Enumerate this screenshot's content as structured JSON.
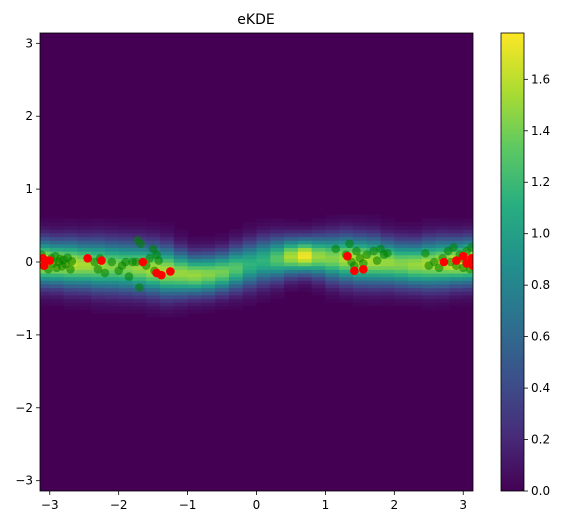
{
  "chart_data": {
    "type": "heatmap",
    "title": "eKDE",
    "xlabel": "",
    "ylabel": "",
    "xlim": [
      -3.14159,
      3.14159
    ],
    "ylim": [
      -3.14159,
      3.14159
    ],
    "x_ticks": [
      -3,
      -2,
      -1,
      0,
      1,
      2,
      3
    ],
    "x_tick_labels": [
      "−3",
      "−2",
      "−1",
      "0",
      "1",
      "2",
      "3"
    ],
    "y_ticks": [
      -3,
      -2,
      -1,
      0,
      1,
      2,
      3
    ],
    "y_tick_labels": [
      "−3",
      "−2",
      "−1",
      "0",
      "1",
      "2",
      "3"
    ],
    "grid": false,
    "colormap": "viridis",
    "colorbar": {
      "range": [
        0,
        1.78
      ],
      "ticks": [
        0.0,
        0.2,
        0.4,
        0.6,
        0.8,
        1.0,
        1.2,
        1.4,
        1.6
      ],
      "tick_labels": [
        "0.0",
        "0.2",
        "0.4",
        "0.6",
        "0.8",
        "1.0",
        "1.2",
        "1.4",
        "1.6"
      ]
    },
    "density_band": {
      "columns_x": [
        -3.1,
        -2.9,
        -2.7,
        -2.5,
        -2.3,
        -2.1,
        -1.9,
        -1.7,
        -1.5,
        -1.3,
        -1.1,
        -0.9,
        -0.7,
        -0.5,
        -0.3,
        -0.1,
        0.1,
        0.3,
        0.5,
        0.7,
        0.9,
        1.1,
        1.3,
        1.5,
        1.7,
        1.9,
        2.1,
        2.3,
        2.5,
        2.7,
        2.9,
        3.1
      ],
      "center_y": [
        0.0,
        -0.01,
        -0.02,
        -0.03,
        -0.04,
        -0.05,
        -0.06,
        -0.07,
        -0.09,
        -0.12,
        -0.15,
        -0.17,
        -0.16,
        -0.13,
        -0.08,
        -0.03,
        0.02,
        0.05,
        0.08,
        0.09,
        0.08,
        0.06,
        0.05,
        0.03,
        0.02,
        0.0,
        -0.02,
        -0.03,
        -0.02,
        -0.01,
        0.0,
        0.01
      ],
      "peak": [
        1.7,
        1.65,
        1.6,
        1.55,
        1.5,
        1.45,
        1.45,
        1.5,
        1.55,
        1.55,
        1.5,
        1.5,
        1.45,
        1.4,
        1.3,
        1.15,
        1.15,
        1.3,
        1.55,
        1.75,
        1.5,
        1.45,
        1.55,
        1.6,
        1.55,
        1.5,
        1.45,
        1.5,
        1.55,
        1.6,
        1.7,
        1.75
      ],
      "width": [
        0.2,
        0.2,
        0.21,
        0.21,
        0.22,
        0.22,
        0.22,
        0.22,
        0.22,
        0.22,
        0.2,
        0.18,
        0.18,
        0.18,
        0.19,
        0.2,
        0.2,
        0.19,
        0.17,
        0.16,
        0.18,
        0.2,
        0.21,
        0.21,
        0.21,
        0.2,
        0.2,
        0.2,
        0.21,
        0.21,
        0.2,
        0.2
      ]
    },
    "series": [
      {
        "name": "green",
        "color": "#008000",
        "opacity": 0.55,
        "points": [
          [
            -3.12,
            0.1
          ],
          [
            -3.1,
            -0.05
          ],
          [
            -3.05,
            0.02
          ],
          [
            -3.02,
            -0.1
          ],
          [
            -2.98,
            0.05
          ],
          [
            -2.95,
            -0.02
          ],
          [
            -2.92,
            0.08
          ],
          [
            -2.9,
            -0.08
          ],
          [
            -2.87,
            0.0
          ],
          [
            -2.85,
            0.04
          ],
          [
            -2.82,
            -0.06
          ],
          [
            -2.8,
            0.03
          ],
          [
            -2.77,
            -0.03
          ],
          [
            -2.74,
            0.06
          ],
          [
            -2.7,
            -0.1
          ],
          [
            -2.68,
            0.01
          ],
          [
            -2.35,
            0.0
          ],
          [
            -2.3,
            -0.1
          ],
          [
            -2.27,
            0.05
          ],
          [
            -2.2,
            -0.15
          ],
          [
            -2.1,
            0.0
          ],
          [
            -2.0,
            -0.12
          ],
          [
            -1.95,
            -0.05
          ],
          [
            -1.9,
            0.0
          ],
          [
            -1.85,
            -0.2
          ],
          [
            -1.8,
            0.0
          ],
          [
            -1.75,
            0.0
          ],
          [
            -1.72,
            0.3
          ],
          [
            -1.68,
            0.25
          ],
          [
            -1.7,
            -0.35
          ],
          [
            -1.6,
            -0.05
          ],
          [
            -1.55,
            0.05
          ],
          [
            -1.5,
            0.18
          ],
          [
            -1.45,
            0.1
          ],
          [
            -1.42,
            0.02
          ],
          [
            -1.48,
            -0.12
          ],
          [
            1.15,
            0.18
          ],
          [
            1.3,
            0.1
          ],
          [
            1.35,
            0.25
          ],
          [
            1.38,
            0.0
          ],
          [
            1.42,
            -0.05
          ],
          [
            1.45,
            0.15
          ],
          [
            1.5,
            0.05
          ],
          [
            1.55,
            -0.02
          ],
          [
            1.6,
            0.1
          ],
          [
            1.7,
            0.15
          ],
          [
            1.75,
            0.02
          ],
          [
            1.8,
            0.18
          ],
          [
            1.85,
            0.1
          ],
          [
            1.9,
            0.12
          ],
          [
            2.45,
            0.12
          ],
          [
            2.5,
            -0.05
          ],
          [
            2.58,
            0.0
          ],
          [
            2.65,
            -0.08
          ],
          [
            2.7,
            0.05
          ],
          [
            2.78,
            0.15
          ],
          [
            2.82,
            0.0
          ],
          [
            2.86,
            0.2
          ],
          [
            2.9,
            -0.05
          ],
          [
            2.95,
            0.1
          ],
          [
            2.98,
            0.05
          ],
          [
            3.0,
            -0.08
          ],
          [
            3.05,
            0.15
          ],
          [
            3.08,
            0.0
          ],
          [
            3.12,
            0.2
          ],
          [
            3.1,
            -0.1
          ]
        ]
      },
      {
        "name": "red",
        "color": "#ff0000",
        "opacity": 1.0,
        "points": [
          [
            -3.1,
            0.05
          ],
          [
            -3.08,
            -0.05
          ],
          [
            -3.0,
            0.02
          ],
          [
            -2.45,
            0.05
          ],
          [
            -2.25,
            0.02
          ],
          [
            -1.65,
            0.0
          ],
          [
            -1.45,
            -0.15
          ],
          [
            -1.38,
            -0.18
          ],
          [
            -1.25,
            -0.13
          ],
          [
            1.32,
            0.08
          ],
          [
            1.42,
            -0.12
          ],
          [
            1.55,
            -0.1
          ],
          [
            2.72,
            0.0
          ],
          [
            2.9,
            0.02
          ],
          [
            3.0,
            0.08
          ],
          [
            3.05,
            -0.02
          ],
          [
            3.12,
            0.05
          ],
          [
            3.14,
            -0.05
          ]
        ]
      }
    ]
  }
}
